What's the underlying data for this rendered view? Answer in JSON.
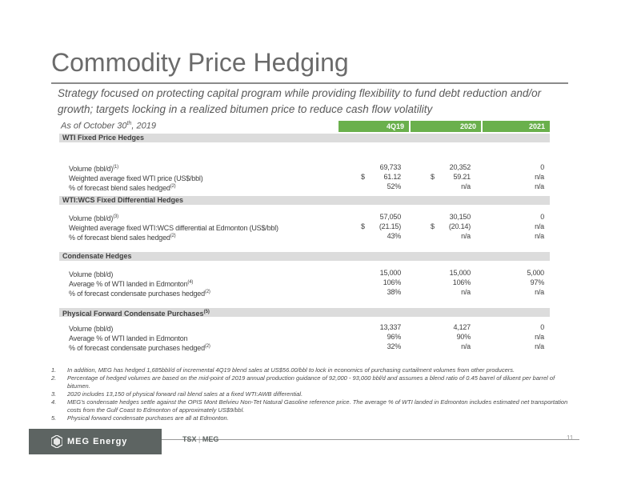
{
  "title": "Commodity Price Hedging",
  "subtitle": "Strategy focused on protecting capital program while providing flexibility to fund debt reduction and/or growth; targets locking in a realized bitumen price to reduce cash flow volatility",
  "asof": {
    "text": "As of October 30",
    "sup": "th",
    "year": ", 2019"
  },
  "columns": [
    "4Q19",
    "2020",
    "2021"
  ],
  "sections": [
    {
      "title": "WTI Fixed Price Hedges",
      "title_sup": "",
      "rows": [
        {
          "label": "Volume (bbl/d)",
          "sup": "(1)",
          "d1": "",
          "v1": "69,733",
          "d2": "",
          "v2": "20,352",
          "v3": "0"
        },
        {
          "label": "Weighted average fixed WTI price (US$/bbl)",
          "sup": "",
          "d1": "$",
          "v1": "61.12",
          "d2": "$",
          "v2": "59.21",
          "v3": "n/a"
        },
        {
          "label": "% of forecast blend sales hedged",
          "sup": "(2)",
          "d1": "",
          "v1": "52%",
          "d2": "",
          "v2": "n/a",
          "v3": "n/a"
        }
      ]
    },
    {
      "title": "WTI:WCS Fixed Differential Hedges",
      "title_sup": "",
      "rows": [
        {
          "label": "Volume (bbl/d)",
          "sup": "(3)",
          "d1": "",
          "v1": "57,050",
          "d2": "",
          "v2": "30,150",
          "v3": "0"
        },
        {
          "label": "Weighted average fixed WTI:WCS differential at Edmonton (US$/bbl)",
          "sup": "",
          "d1": "$",
          "v1": "(21.15)",
          "d2": "$",
          "v2": "(20.14)",
          "v3": "n/a"
        },
        {
          "label": "% of forecast blend sales hedged",
          "sup": "(2)",
          "d1": "",
          "v1": "43%",
          "d2": "",
          "v2": "n/a",
          "v3": "n/a"
        }
      ]
    },
    {
      "title": "Condensate Hedges",
      "title_sup": "",
      "rows": [
        {
          "label": "Volume (bbl/d)",
          "sup": "",
          "d1": "",
          "v1": "15,000",
          "d2": "",
          "v2": "15,000",
          "v3": "5,000"
        },
        {
          "label": "Average % of WTI landed in Edmonton",
          "sup": "(4)",
          "d1": "",
          "v1": "106%",
          "d2": "",
          "v2": "106%",
          "v3": "97%"
        },
        {
          "label": "% of forecast condensate purchases hedged",
          "sup": "(2)",
          "d1": "",
          "v1": "38%",
          "d2": "",
          "v2": "n/a",
          "v3": "n/a"
        }
      ]
    },
    {
      "title": "Physical Forward Condensate Purchases",
      "title_sup": "(5)",
      "rows": [
        {
          "label": "Volume (bbl/d)",
          "sup": "",
          "d1": "",
          "v1": "13,337",
          "d2": "",
          "v2": "4,127",
          "v3": "0"
        },
        {
          "label": "Average % of WTI landed in Edmonton",
          "sup": "",
          "d1": "",
          "v1": "96%",
          "d2": "",
          "v2": "90%",
          "v3": "n/a"
        },
        {
          "label": "% of forecast condensate purchases hedged",
          "sup": "(2)",
          "d1": "",
          "v1": "32%",
          "d2": "",
          "v2": "n/a",
          "v3": "n/a"
        }
      ]
    }
  ],
  "footnotes": [
    {
      "num": "1.",
      "text": "In addition, MEG has hedged 1,685bbl/d of incremental 4Q19 blend sales at US$56.00/bbl to lock in economics of purchasing curtailment volumes from other producers."
    },
    {
      "num": "2.",
      "text": "Percentage of hedged volumes are based on the mid-point of 2019 annual production guidance of 92,000 - 93,000 bbl/d and assumes a blend ratio of 0.45 barrel of diluent per barrel of bitumen."
    },
    {
      "num": "3.",
      "text": "2020 includes 13,150 of physical forward rail blend sales at a fixed WTI:AWB differential."
    },
    {
      "num": "4.",
      "text": "MEG's condensate hedges settle against the OPIS Mont Belvieu Non-Tet Natural Gasoline reference price. The average % of WTI landed in Edmonton includes estimated net transportation costs from the Gulf Coast to Edmonton of approximately US$9/bbl."
    },
    {
      "num": "5.",
      "text": "Physical forward condensate purchases are all at Edmonton."
    }
  ],
  "footer": {
    "company": "MEG Energy",
    "ticker_left": "TSX",
    "ticker_sep": "|",
    "ticker_right": "MEG",
    "page": "11"
  },
  "colors": {
    "header_green": "#6ab04c",
    "section_gray": "#dcdcdc",
    "logo_bg": "#5d6462"
  }
}
